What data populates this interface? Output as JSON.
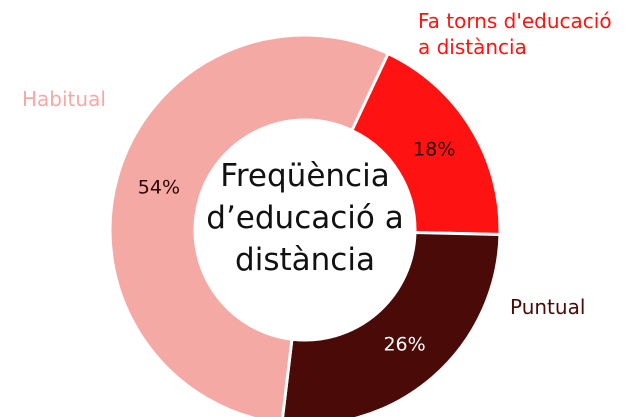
{
  "chart_data": {
    "type": "donut",
    "title": "Freqüència d’educació a distància",
    "categories": [
      "Fa torns d'educació a distància",
      "Puntual",
      "Habitual"
    ],
    "values": [
      18,
      26,
      54
    ],
    "value_labels": [
      "18%",
      "26%",
      "54%"
    ],
    "colors": [
      "#ff1212",
      "#4a0b08",
      "#f5a9a5"
    ]
  }
}
